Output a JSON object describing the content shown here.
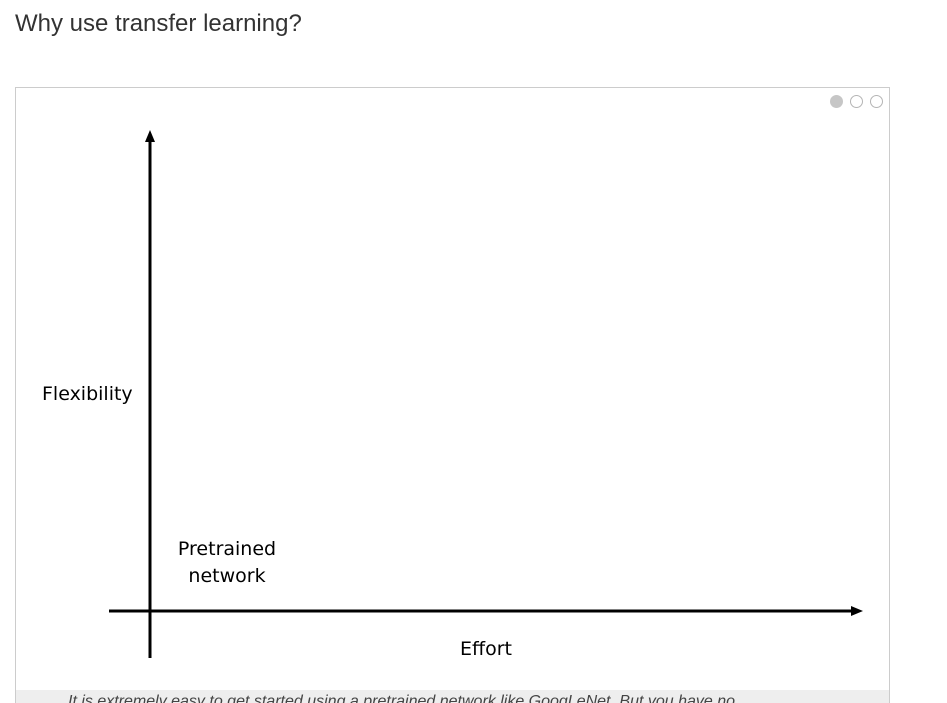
{
  "page": {
    "title": "Why use transfer learning?"
  },
  "carousel": {
    "dots": [
      {
        "state": "active"
      },
      {
        "state": "inactive"
      },
      {
        "state": "inactive"
      }
    ]
  },
  "diagram": {
    "y_axis_label": "Flexibility",
    "x_axis_label": "Effort",
    "nodes": [
      {
        "label_line1": "Pretrained",
        "label_line2": "network"
      }
    ]
  },
  "caption": {
    "text": "It is extremely easy to get started using a pretrained network like GoogLeNet. But you have no"
  },
  "colors": {
    "axis": "#000000",
    "frame_border": "#cccccc",
    "dot_active": "#c6c6c6",
    "caption_bg": "#eeeeee",
    "title_text": "#333333"
  }
}
